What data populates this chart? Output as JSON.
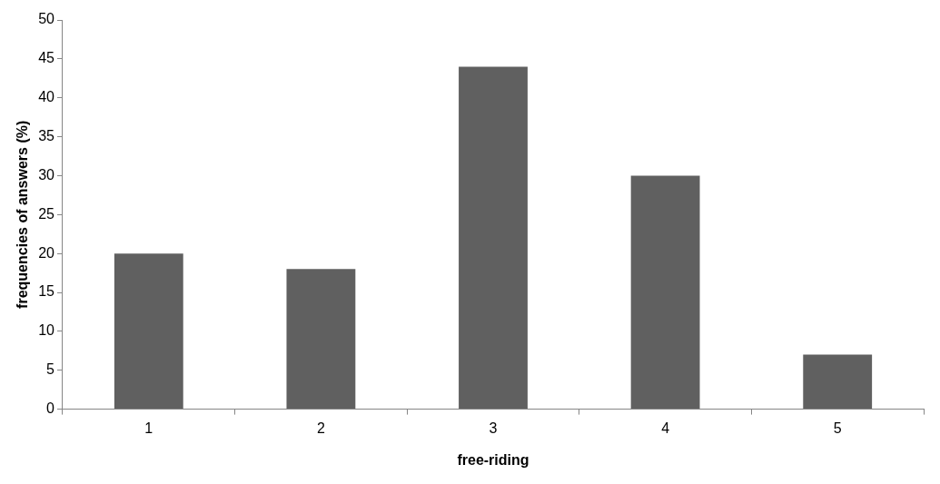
{
  "chart_data": {
    "type": "bar",
    "xlabel": "free-riding",
    "ylabel": "frequencies of answers (%)",
    "categories": [
      "1",
      "2",
      "3",
      "4",
      "5"
    ],
    "values": [
      20,
      18,
      44,
      30,
      7
    ],
    "color": "#606060",
    "ylim": [
      0,
      50
    ],
    "yticks": [
      0,
      5,
      10,
      15,
      20,
      25,
      30,
      35,
      40,
      45,
      50
    ]
  }
}
